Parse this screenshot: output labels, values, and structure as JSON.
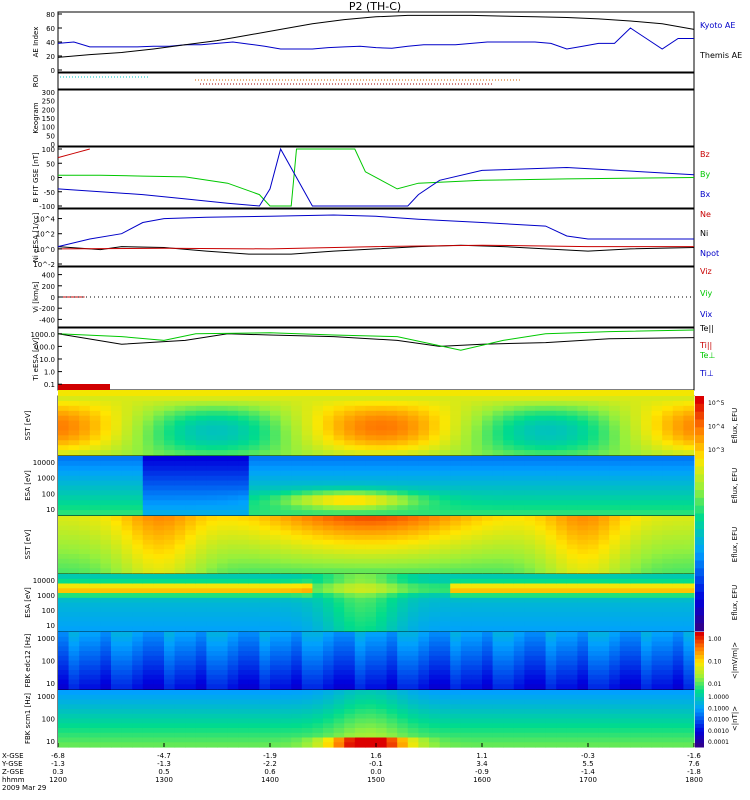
{
  "title": "P2 (TH-C)",
  "chart_data": [
    {
      "type": "line",
      "id": "ae",
      "ylabel": "AE Index",
      "ylim": [
        0,
        80
      ],
      "ticks": [
        0,
        20,
        40,
        60,
        80
      ],
      "series": [
        {
          "name": "Kyoto AE",
          "color": "#0000c8",
          "x": [
            1200,
            1215,
            1230,
            1245,
            1260,
            1275,
            1290,
            1305,
            1320,
            1335,
            1350,
            1365,
            1380,
            1395,
            1410,
            1425,
            1440,
            1455,
            1470,
            1485,
            1500,
            1515,
            1530,
            1545,
            1560,
            1575,
            1590,
            1605,
            1620,
            1635,
            1650,
            1665,
            1680,
            1695,
            1710,
            1725,
            1740,
            1755,
            1770,
            1785,
            1800
          ],
          "values": [
            38,
            40,
            33,
            33,
            33,
            33,
            34,
            34,
            36,
            36,
            38,
            40,
            37,
            34,
            30,
            30,
            30,
            32,
            33,
            34,
            32,
            31,
            34,
            36,
            36,
            36,
            38,
            40,
            40,
            40,
            40,
            38,
            30,
            34,
            38,
            38,
            60,
            45,
            30,
            45,
            45
          ]
        },
        {
          "name": "Themis AE",
          "color": "#000000",
          "x": [
            1200,
            1230,
            1260,
            1290,
            1320,
            1350,
            1380,
            1410,
            1440,
            1470,
            1500,
            1530,
            1560,
            1590,
            1620,
            1650,
            1680,
            1710,
            1740,
            1770,
            1800
          ],
          "values": [
            18,
            22,
            25,
            30,
            36,
            42,
            50,
            58,
            66,
            72,
            76,
            78,
            78,
            78,
            77,
            76,
            75,
            73,
            70,
            66,
            58
          ]
        }
      ]
    },
    {
      "type": "line",
      "id": "roi",
      "ylabel": "ROI",
      "series": [
        {
          "name": "ROI",
          "x": [],
          "values": []
        }
      ]
    },
    {
      "type": "line",
      "id": "keogram",
      "ylabel": "Keogram",
      "ylim": [
        0,
        300
      ],
      "ticks": [
        0,
        50,
        100,
        150,
        200,
        250,
        300
      ],
      "series": []
    },
    {
      "type": "line",
      "id": "bfield",
      "ylabel": "B FIT GSE [nT]",
      "ylim": [
        -100,
        100
      ],
      "ticks": [
        -100,
        -50,
        0,
        50,
        100
      ],
      "series": [
        {
          "name": "Bz",
          "color": "#c80000",
          "x": [
            1200,
            1215,
            1230
          ],
          "values": [
            70,
            85,
            100
          ]
        },
        {
          "name": "By",
          "color": "#00c800",
          "x": [
            1200,
            1240,
            1280,
            1320,
            1360,
            1390,
            1400,
            1420,
            1425,
            1480,
            1490,
            1520,
            1540,
            1600,
            1680,
            1800
          ],
          "values": [
            8,
            8,
            5,
            2,
            -20,
            -60,
            -100,
            -100,
            100,
            100,
            20,
            -40,
            -20,
            -10,
            -5,
            0
          ]
        },
        {
          "name": "Bx",
          "color": "#0000c8",
          "x": [
            1200,
            1240,
            1280,
            1320,
            1360,
            1390,
            1400,
            1410,
            1440,
            1530,
            1540,
            1560,
            1600,
            1680,
            1800
          ],
          "values": [
            -40,
            -50,
            -60,
            -75,
            -90,
            -100,
            -40,
            100,
            -100,
            -100,
            -60,
            -10,
            25,
            35,
            10
          ]
        }
      ]
    },
    {
      "type": "line",
      "id": "density",
      "ylabel": "Ni eESA [1/cc]",
      "yscale": "log",
      "ylim": [
        0.01,
        100000
      ],
      "ticks": [
        "10^-2",
        "10^0",
        "10^2",
        "10^4"
      ],
      "series": [
        {
          "name": "Ni",
          "color": "#000000",
          "x": [
            1200,
            1240,
            1260,
            1300,
            1340,
            1380,
            1420,
            1460,
            1500,
            1540,
            1580,
            1620,
            1660,
            1700,
            1740,
            1800
          ],
          "values": [
            2,
            0.8,
            2,
            1.5,
            0.5,
            0.2,
            0.2,
            0.5,
            1,
            2,
            3,
            2,
            1,
            0.5,
            1,
            1.5
          ]
        },
        {
          "name": "Ne",
          "color": "#c80000",
          "x": [
            1200,
            1300,
            1400,
            1500,
            1600,
            1700,
            1800
          ],
          "values": [
            1,
            1.2,
            1,
            2,
            3,
            2,
            2
          ]
        },
        {
          "name": "Npot",
          "color": "#0000c8",
          "x": [
            1200,
            1230,
            1260,
            1280,
            1300,
            1340,
            1400,
            1460,
            1500,
            1540,
            1600,
            1660,
            1680,
            1700,
            1740,
            1800
          ],
          "values": [
            2,
            20,
            100,
            3000,
            10000,
            15000,
            20000,
            30000,
            20000,
            8000,
            3000,
            1000,
            50,
            20,
            20,
            20
          ]
        }
      ]
    },
    {
      "type": "line",
      "id": "velocity",
      "ylabel": "Vi [km/s]",
      "ylim": [
        -500,
        500
      ],
      "ticks": [
        -400,
        -200,
        0,
        200,
        400
      ],
      "series": [
        {
          "name": "Viz",
          "color": "#c80000",
          "x": [
            1200,
            1225
          ],
          "values": [
            0,
            0
          ]
        },
        {
          "name": "Viy",
          "color": "#00c800",
          "x": [],
          "values": []
        },
        {
          "name": "Vix",
          "color": "#0000c8",
          "x": [],
          "values": []
        }
      ]
    },
    {
      "type": "line",
      "id": "temp",
      "ylabel": "Ti eESA [eV]",
      "yscale": "log",
      "ylim": [
        0.05,
        2000
      ],
      "ticks": [
        "0.1",
        "1.0",
        "10.0",
        "100.0",
        "1000.0"
      ],
      "series": [
        {
          "name": "Te||",
          "color": "#000000",
          "x": [
            1200,
            1260,
            1320,
            1360,
            1400,
            1460,
            1520,
            1560,
            1600,
            1660,
            1720,
            1800
          ],
          "values": [
            1000,
            150,
            300,
            1000,
            800,
            600,
            300,
            100,
            150,
            200,
            400,
            500
          ]
        },
        {
          "name": "Ti||",
          "color": "#00c800",
          "x": [
            1200,
            1260,
            1300,
            1330,
            1400,
            1460,
            1520,
            1580,
            1620,
            1660,
            1720,
            1800
          ],
          "values": [
            1000,
            600,
            300,
            1000,
            1200,
            800,
            600,
            50,
            300,
            1000,
            1500,
            2000
          ]
        },
        {
          "name": "Te⊥",
          "color": "#c80000",
          "x": [],
          "values": []
        },
        {
          "name": "Ti⊥",
          "color": "#0000c8",
          "x": [],
          "values": []
        }
      ]
    },
    {
      "type": "heatmap",
      "id": "sst-ion",
      "ylabel": "SST [eV]",
      "clabel": "Eflux, EFU",
      "cticks": [
        "10^5",
        "10^4",
        "10^3"
      ]
    },
    {
      "type": "heatmap",
      "id": "esa-ion",
      "ylabel": "ESA [eV]",
      "clabel": "Eflux, EFU",
      "ticks": [
        "10000",
        "1000",
        "100",
        "10"
      ]
    },
    {
      "type": "heatmap",
      "id": "sst-elec",
      "ylabel": "SST [eV]",
      "clabel": "Eflux, EFU"
    },
    {
      "type": "heatmap",
      "id": "esa-elec",
      "ylabel": "ESA [eV]",
      "clabel": "Eflux, EFU",
      "ticks": [
        "10000",
        "1000",
        "100",
        "10"
      ]
    },
    {
      "type": "heatmap",
      "id": "fbk-e",
      "ylabel": "FBK edc12 [Hz]",
      "clabel": "<|mV/m|>",
      "cticks": [
        "1.00",
        "0.10",
        "0.01"
      ],
      "ticks": [
        "1000",
        "100",
        "10"
      ]
    },
    {
      "type": "heatmap",
      "id": "fbk-b",
      "ylabel": "FBK scm1 [Hz]",
      "clabel": "<|nT|>",
      "cticks": [
        "1.0000",
        "0.1000",
        "0.0100",
        "0.0010",
        "0.0001"
      ],
      "ticks": [
        "1000",
        "100",
        "10"
      ]
    }
  ],
  "axis": {
    "x_ticks": [
      "1200",
      "1300",
      "1400",
      "1500",
      "1600",
      "1700",
      "1800"
    ],
    "rows": [
      {
        "label": "X-GSE",
        "values": [
          "-6.8",
          "-4.7",
          "-1.9",
          "1.6",
          "1.1",
          "-0.3",
          "-1.6"
        ]
      },
      {
        "label": "Y-GSE",
        "values": [
          "-1.3",
          "-1.3",
          "-2.2",
          "-0.1",
          "3.4",
          "5.5",
          "7.6"
        ]
      },
      {
        "label": "Z-GSE",
        "values": [
          "0.3",
          "0.5",
          "0.6",
          "0.0",
          "-0.9",
          "-1.4",
          "-1.8"
        ]
      },
      {
        "label": "hhmm",
        "values": [
          "1200",
          "1300",
          "1400",
          "1500",
          "1600",
          "1700",
          "1800"
        ]
      }
    ],
    "date": "2009 Mar 29"
  },
  "legends": {
    "ae": [
      "Kyoto AE",
      "Themis AE"
    ],
    "bfield": [
      "Bz",
      "By",
      "Bx"
    ],
    "density": [
      "Ne",
      "Ni",
      "Npot"
    ],
    "velocity": [
      "Viz",
      "Viy",
      "Vix"
    ],
    "temp": [
      "Te||",
      "Ti||",
      "Te⊥",
      "Ti⊥"
    ]
  }
}
